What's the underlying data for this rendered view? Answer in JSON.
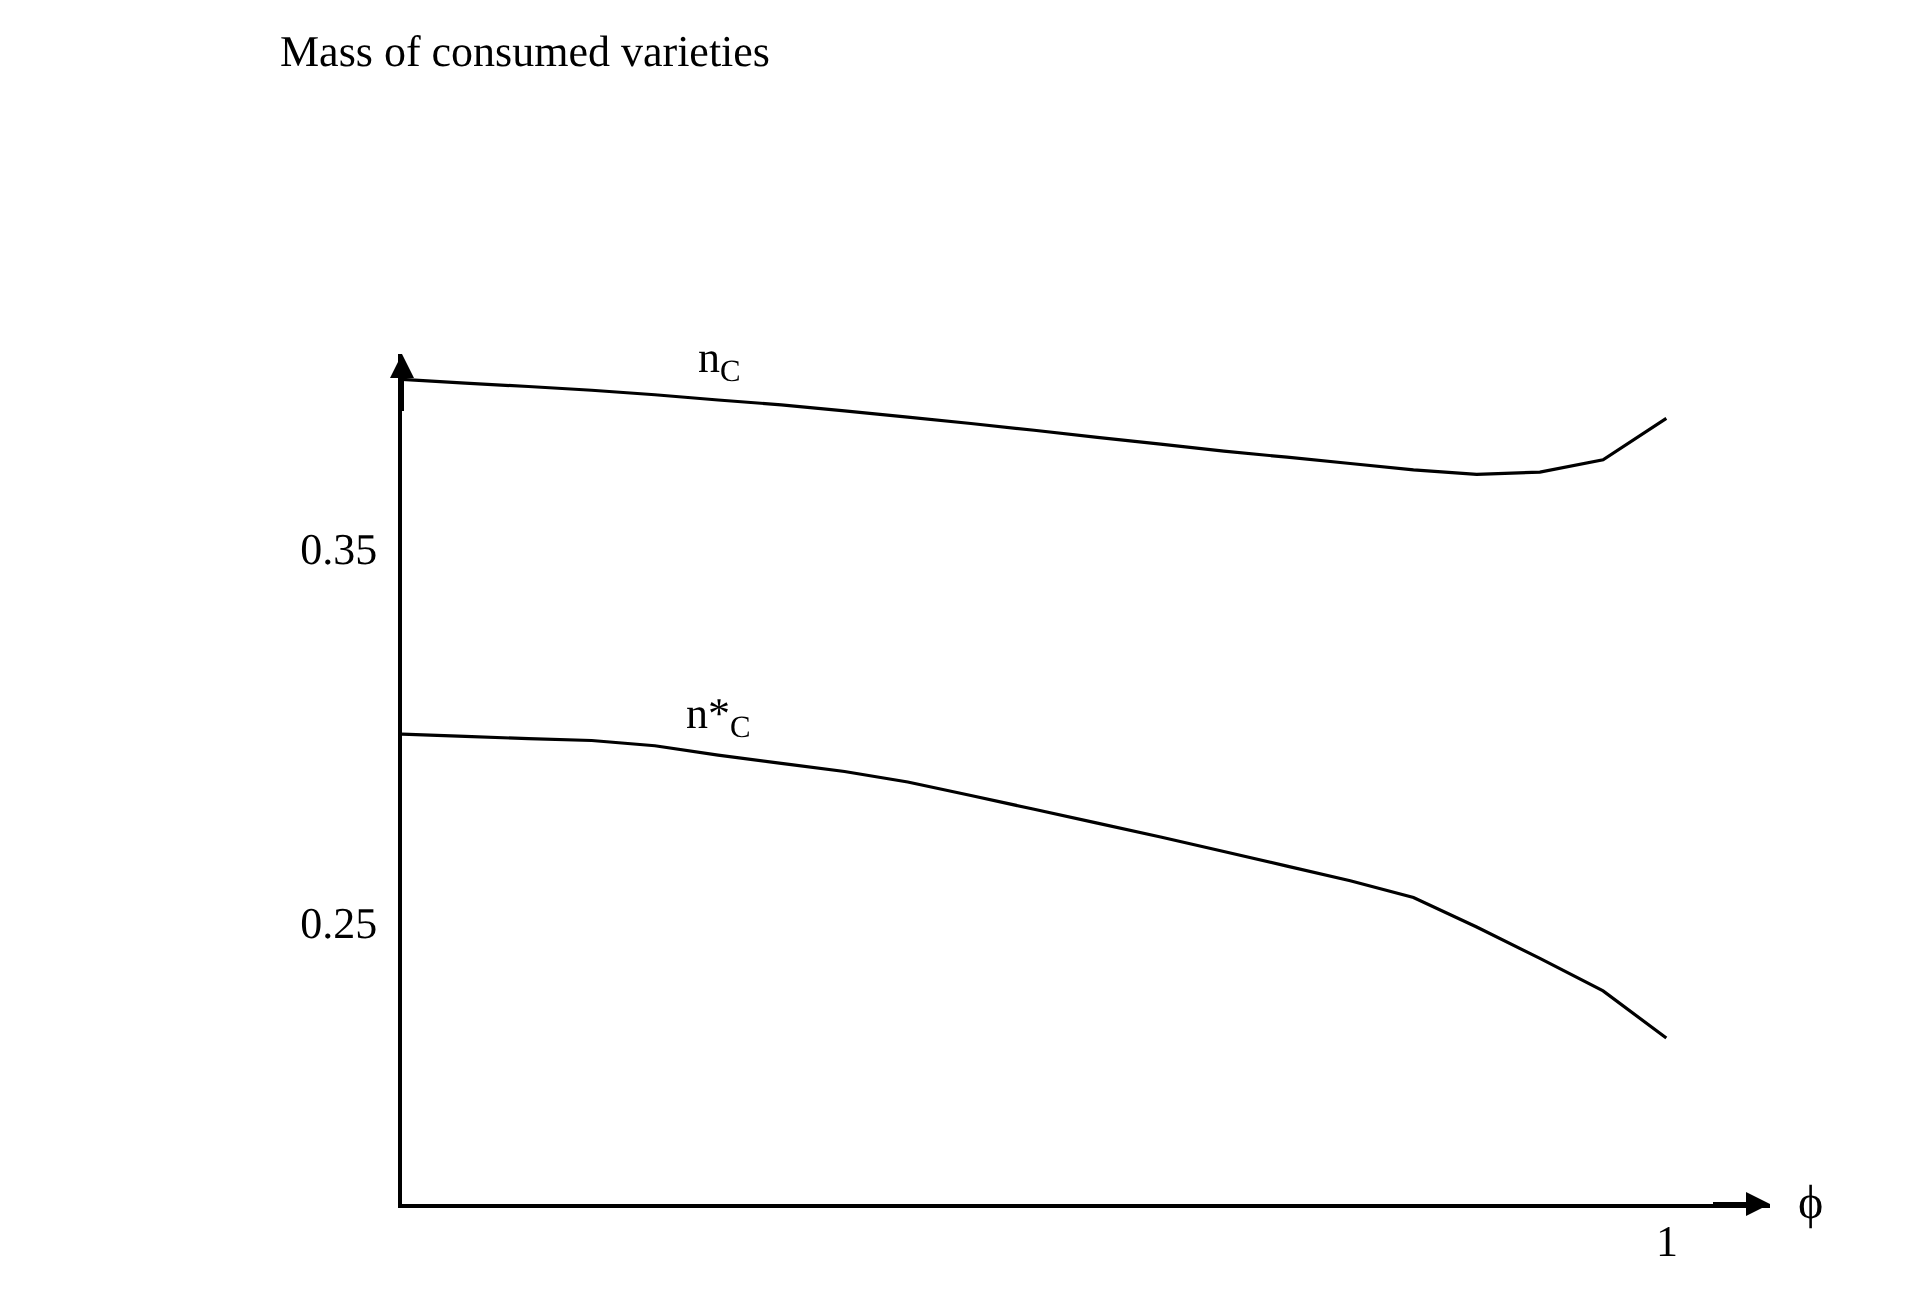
{
  "chart_data": {
    "type": "line",
    "xlabel": "ϕ",
    "categories": [
      null,
      null,
      null,
      null,
      null,
      null,
      null,
      null,
      null,
      null,
      null,
      null,
      null,
      null,
      null,
      null,
      null,
      null,
      null,
      null,
      null
    ],
    "ylim": [
      0.1746,
      0.402
    ],
    "yticks": [
      0.25,
      0.35
    ],
    "annotations": [
      "Mass of consumed varieties",
      "1"
    ],
    "legend": false,
    "marker": "none",
    "line_style": "solid",
    "series": [
      {
        "name": "n$_{C}$",
        "color": "#000000",
        "values": [
          0.3952,
          0.3942,
          0.3933,
          0.3923,
          0.3911,
          0.3897,
          0.3884,
          0.3868,
          0.3851,
          0.3834,
          0.3816,
          0.3797,
          0.3779,
          0.376,
          0.3744,
          0.3727,
          0.371,
          0.3698,
          0.3704,
          0.3737,
          0.3848
        ]
      },
      {
        "name": "n*$_{C}$",
        "color": "#000000",
        "values": [
          0.3003,
          0.2997,
          0.2991,
          0.2986,
          0.2972,
          0.2947,
          0.2925,
          0.2903,
          0.2875,
          0.2839,
          0.2802,
          0.2765,
          0.2728,
          0.2689,
          0.265,
          0.2611,
          0.2566,
          0.2487,
          0.2403,
          0.2316,
          0.219
        ]
      }
    ]
  }
}
